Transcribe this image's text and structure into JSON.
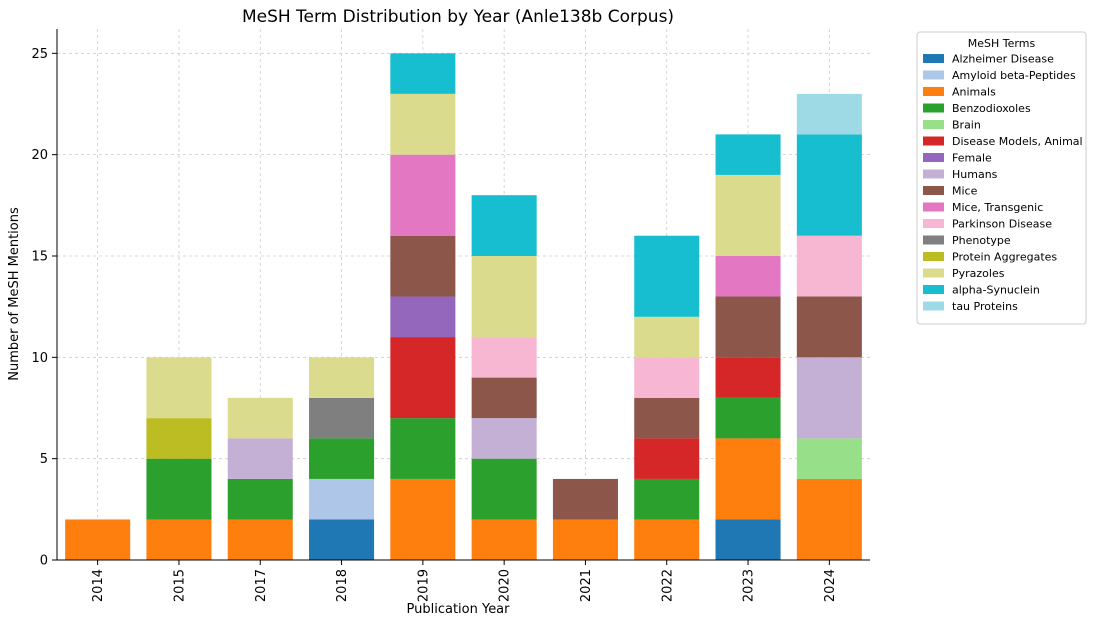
{
  "chart_data": {
    "type": "bar",
    "stacked": true,
    "title": "MeSH Term Distribution by Year (Anle138b Corpus)",
    "xlabel": "Publication Year",
    "ylabel": "Number of MeSH Mentions",
    "categories": [
      "2014",
      "2015",
      "2017",
      "2018",
      "2019",
      "2020",
      "2021",
      "2022",
      "2023",
      "2024"
    ],
    "ylim": [
      0,
      26.2
    ],
    "yticks": [
      0,
      5,
      10,
      15,
      20,
      25
    ],
    "grid": true,
    "legend": {
      "title": "MeSH Terms",
      "placement": "outside-right-top"
    },
    "series": [
      {
        "name": "Alzheimer Disease",
        "color": "#1f77b4",
        "values": [
          0,
          0,
          0,
          2,
          0,
          0,
          0,
          0,
          2,
          0
        ]
      },
      {
        "name": "Amyloid beta-Peptides",
        "color": "#aec7e8",
        "values": [
          0,
          0,
          0,
          2,
          0,
          0,
          0,
          0,
          0,
          0
        ]
      },
      {
        "name": "Animals",
        "color": "#ff7f0e",
        "values": [
          2,
          2,
          2,
          0,
          4,
          2,
          2,
          2,
          4,
          4
        ]
      },
      {
        "name": "Benzodioxoles",
        "color": "#2ca02c",
        "values": [
          0,
          3,
          2,
          2,
          3,
          3,
          0,
          2,
          2,
          0
        ]
      },
      {
        "name": "Brain",
        "color": "#98df8a",
        "values": [
          0,
          0,
          0,
          0,
          0,
          0,
          0,
          0,
          0,
          2
        ]
      },
      {
        "name": "Disease Models, Animal",
        "color": "#d62728",
        "values": [
          0,
          0,
          0,
          0,
          4,
          0,
          0,
          2,
          2,
          0
        ]
      },
      {
        "name": "Female",
        "color": "#9467bd",
        "values": [
          0,
          0,
          0,
          0,
          2,
          0,
          0,
          0,
          0,
          0
        ]
      },
      {
        "name": "Humans",
        "color": "#c5b0d5",
        "values": [
          0,
          0,
          2,
          0,
          0,
          2,
          0,
          0,
          0,
          4
        ]
      },
      {
        "name": "Mice",
        "color": "#8c564b",
        "values": [
          0,
          0,
          0,
          0,
          3,
          2,
          2,
          2,
          3,
          3
        ]
      },
      {
        "name": "Mice, Transgenic",
        "color": "#e377c2",
        "values": [
          0,
          0,
          0,
          0,
          4,
          0,
          0,
          0,
          2,
          0
        ]
      },
      {
        "name": "Parkinson Disease",
        "color": "#f7b6d2",
        "values": [
          0,
          0,
          0,
          0,
          0,
          2,
          0,
          2,
          0,
          3
        ]
      },
      {
        "name": "Phenotype",
        "color": "#7f7f7f",
        "values": [
          0,
          0,
          0,
          2,
          0,
          0,
          0,
          0,
          0,
          0
        ]
      },
      {
        "name": "Protein Aggregates",
        "color": "#bcbd22",
        "values": [
          0,
          2,
          0,
          0,
          0,
          0,
          0,
          0,
          0,
          0
        ]
      },
      {
        "name": "Pyrazoles",
        "color": "#dbdb8d",
        "values": [
          0,
          3,
          2,
          2,
          3,
          4,
          0,
          2,
          4,
          0
        ]
      },
      {
        "name": "alpha-Synuclein",
        "color": "#17becf",
        "values": [
          0,
          0,
          0,
          0,
          2,
          3,
          0,
          4,
          2,
          5
        ]
      },
      {
        "name": "tau Proteins",
        "color": "#9edae5",
        "values": [
          0,
          0,
          0,
          0,
          0,
          0,
          0,
          0,
          0,
          2
        ]
      }
    ]
  }
}
